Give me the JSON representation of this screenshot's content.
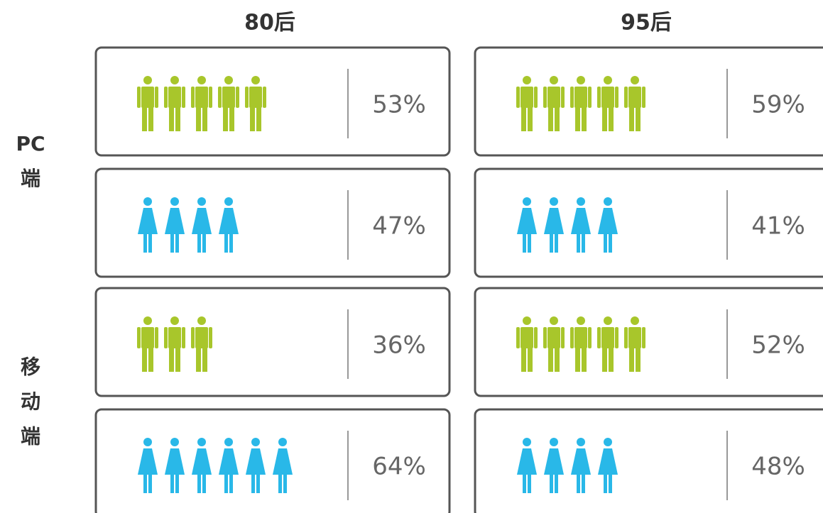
{
  "columns": [
    "80后",
    "95后"
  ],
  "groups": [
    {
      "label_lines": [
        "PC",
        "端"
      ],
      "rows": [
        [
          {
            "icon": "male",
            "color": "#a8c62b",
            "count": 5,
            "label": "53%"
          },
          {
            "icon": "male",
            "color": "#a8c62b",
            "count": 5,
            "label": "59%"
          }
        ],
        [
          {
            "icon": "female",
            "color": "#29b8e8",
            "count": 4,
            "label": "47%"
          },
          {
            "icon": "female",
            "color": "#29b8e8",
            "count": 4,
            "label": "41%"
          }
        ]
      ]
    },
    {
      "label_lines": [
        "移",
        "动",
        "端"
      ],
      "rows": [
        [
          {
            "icon": "male",
            "color": "#a8c62b",
            "count": 3,
            "label": "36%"
          },
          {
            "icon": "male",
            "color": "#a8c62b",
            "count": 5,
            "label": "52%"
          }
        ],
        [
          {
            "icon": "female",
            "color": "#29b8e8",
            "count": 6,
            "label": "64%"
          },
          {
            "icon": "female",
            "color": "#29b8e8",
            "count": 4,
            "label": "48%"
          }
        ]
      ]
    }
  ]
}
